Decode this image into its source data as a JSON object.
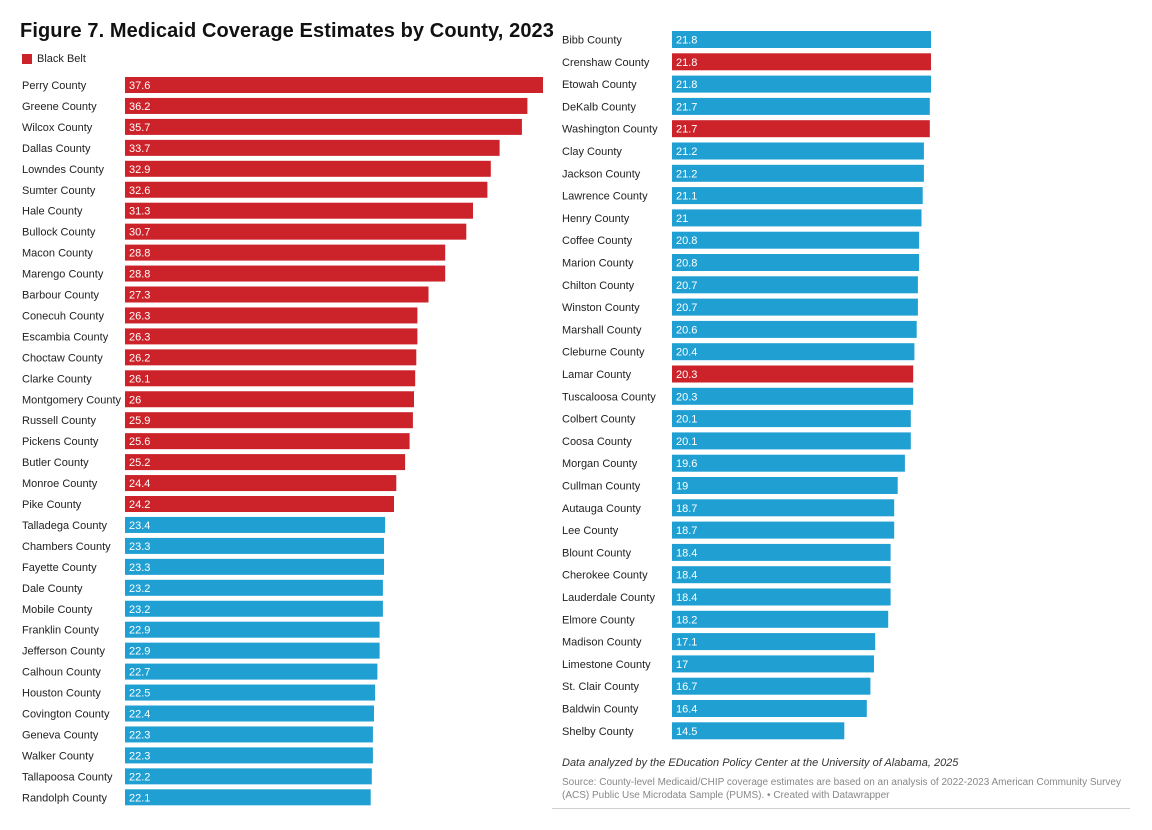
{
  "title": "Figure 7. Medicaid Coverage Estimates by County, 2023",
  "legend": {
    "label": "Black Belt",
    "color": "#cc2229"
  },
  "colors": {
    "black_belt": "#cc2229",
    "other": "#1f9fd2"
  },
  "note": "Data analyzed by the EDucation Policy Center at the University of Alabama, 2025",
  "source": "Source: County-level Medicaid/CHIP coverage estimates are based on an analysis of 2022-2023 American Community Survey (ACS) Public Use Microdata Sample (PUMS). • Created with Datawrapper",
  "chart_data": {
    "type": "bar",
    "orientation": "horizontal",
    "title": "Figure 7. Medicaid Coverage Estimates by County, 2023",
    "series": [
      {
        "name": "Medicaid coverage",
        "categories": [
          "Perry County",
          "Greene County",
          "Wilcox County",
          "Dallas County",
          "Lowndes County",
          "Sumter County",
          "Hale County",
          "Bullock County",
          "Macon County",
          "Marengo County",
          "Barbour County",
          "Conecuh County",
          "Escambia County",
          "Choctaw County",
          "Clarke County",
          "Montgomery County",
          "Russell County",
          "Pickens County",
          "Butler County",
          "Monroe County",
          "Pike County",
          "Talladega County",
          "Chambers County",
          "Fayette County",
          "Dale County",
          "Mobile County",
          "Franklin County",
          "Jefferson County",
          "Calhoun County",
          "Houston County",
          "Covington County",
          "Geneva County",
          "Walker County",
          "Tallapoosa County",
          "Randolph County",
          "Bibb County",
          "Crenshaw County",
          "Etowah County",
          "DeKalb County",
          "Washington County",
          "Clay County",
          "Jackson County",
          "Lawrence County",
          "Henry County",
          "Coffee County",
          "Marion County",
          "Chilton County",
          "Winston County",
          "Marshall County",
          "Cleburne County",
          "Lamar County",
          "Tuscaloosa County",
          "Colbert County",
          "Coosa County",
          "Morgan County",
          "Cullman County",
          "Autauga County",
          "Lee County",
          "Blount County",
          "Cherokee County",
          "Lauderdale County",
          "Elmore County",
          "Madison County",
          "Limestone County",
          "St. Clair County",
          "Baldwin County",
          "Shelby County"
        ],
        "values": [
          37.6,
          36.2,
          35.7,
          33.7,
          32.9,
          32.6,
          31.3,
          30.7,
          28.8,
          28.8,
          27.3,
          26.3,
          26.3,
          26.2,
          26.1,
          26,
          25.9,
          25.6,
          25.2,
          24.4,
          24.2,
          23.4,
          23.3,
          23.3,
          23.2,
          23.2,
          22.9,
          22.9,
          22.7,
          22.5,
          22.4,
          22.3,
          22.3,
          22.2,
          22.1,
          21.8,
          21.8,
          21.8,
          21.7,
          21.7,
          21.2,
          21.2,
          21.1,
          21,
          20.8,
          20.8,
          20.7,
          20.7,
          20.6,
          20.4,
          20.3,
          20.3,
          20.1,
          20.1,
          19.6,
          19,
          18.7,
          18.7,
          18.4,
          18.4,
          18.4,
          18.2,
          17.1,
          17,
          16.7,
          16.4,
          14.5
        ],
        "value_labels": [
          "37.6",
          "36.2",
          "35.7",
          "33.7",
          "32.9",
          "32.6",
          "31.3",
          "30.7",
          "28.8",
          "28.8",
          "27.3",
          "26.3",
          "26.3",
          "26.2",
          "26.1",
          "26",
          "25.9",
          "25.6",
          "25.2",
          "24.4",
          "24.2",
          "23.4",
          "23.3",
          "23.3",
          "23.2",
          "23.2",
          "22.9",
          "22.9",
          "22.7",
          "22.5",
          "22.4",
          "22.3",
          "22.3",
          "22.2",
          "22.1",
          "21.8",
          "21.8",
          "21.8",
          "21.7",
          "21.7",
          "21.2",
          "21.2",
          "21.1",
          "21",
          "20.8",
          "20.8",
          "20.7",
          "20.7",
          "20.6",
          "20.4",
          "20.3",
          "20.3",
          "20.1",
          "20.1",
          "19.6",
          "19",
          "18.7",
          "18.7",
          "18.4",
          "18.4",
          "18.4",
          "18.2",
          "17.1",
          "17",
          "16.7",
          "16.4",
          "14.5"
        ],
        "black_belt": [
          true,
          true,
          true,
          true,
          true,
          true,
          true,
          true,
          true,
          true,
          true,
          true,
          true,
          true,
          true,
          true,
          true,
          true,
          true,
          true,
          true,
          false,
          false,
          false,
          false,
          false,
          false,
          false,
          false,
          false,
          false,
          false,
          false,
          false,
          false,
          false,
          true,
          false,
          false,
          true,
          false,
          false,
          false,
          false,
          false,
          false,
          false,
          false,
          false,
          false,
          true,
          false,
          false,
          false,
          false,
          false,
          false,
          false,
          false,
          false,
          false,
          false,
          false,
          false,
          false,
          false,
          false
        ]
      }
    ],
    "split_columns": 2,
    "first_column_count": 35,
    "xlim": [
      0,
      37.6
    ],
    "grid": false,
    "legend_position": "top-left"
  }
}
